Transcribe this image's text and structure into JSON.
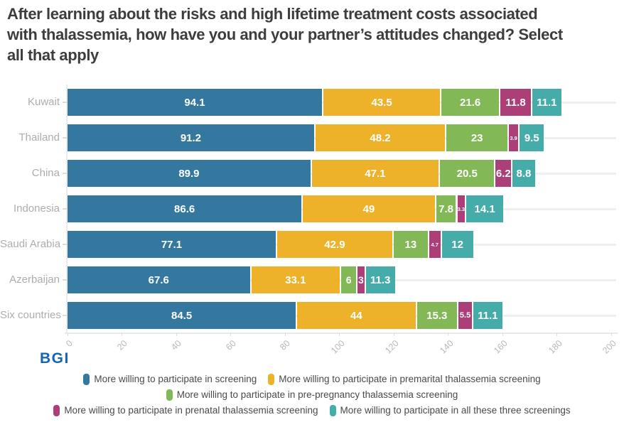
{
  "title": {
    "lines": [
      "After learning about the risks and high lifetime treatment costs associated",
      "with thalassemia, how have you and your partner’s attitudes changed? Select",
      "all that apply"
    ]
  },
  "logo": {
    "text": "BGI"
  },
  "colors": {
    "logo_blue": "#1466b3",
    "title_text": "#3d3d3d",
    "axis_text": "#b9b9b9",
    "category_text": "#adadad",
    "grid": "#efefef",
    "value_label_text": "#ffffff"
  },
  "chart_data": {
    "type": "bar",
    "orientation": "horizontal",
    "stacked": true,
    "grid": true,
    "legend_position": "bottom",
    "xlabel": "",
    "ylabel": "",
    "xlim": [
      0,
      200
    ],
    "x_ticks": [
      0,
      20,
      40,
      60,
      80,
      100,
      120,
      140,
      160,
      180,
      200
    ],
    "categories": [
      "Kuwait",
      "Thailand",
      "China",
      "Indonesia",
      "Saudi Arabia",
      "Azerbaijan",
      "Six countries"
    ],
    "series": [
      {
        "name": "More willing to participate in screening",
        "color": "#34789f",
        "values": [
          94.1,
          91.2,
          89.9,
          86.6,
          77.1,
          67.6,
          84.5
        ]
      },
      {
        "name": "More willing to participate in premarital thalassemia screening",
        "color": "#eeb22a",
        "values": [
          43.5,
          48.2,
          47.1,
          49,
          42.9,
          33.1,
          44
        ]
      },
      {
        "name": "More willing to participate in pre-pregnancy thalassemia screening",
        "color": "#83b857",
        "values": [
          21.6,
          23,
          20.5,
          7.8,
          13,
          6,
          15.3
        ]
      },
      {
        "name": "More willing to participate in prenatal thalassemia screening",
        "color": "#ac3e78",
        "values": [
          11.8,
          3.9,
          6.2,
          3.3,
          4.7,
          3,
          5.5
        ]
      },
      {
        "name": "More willing to participate in all these three screenings",
        "color": "#45aca9",
        "values": [
          11.1,
          9.5,
          8.8,
          14.1,
          12,
          11.3,
          11.1
        ]
      }
    ]
  }
}
